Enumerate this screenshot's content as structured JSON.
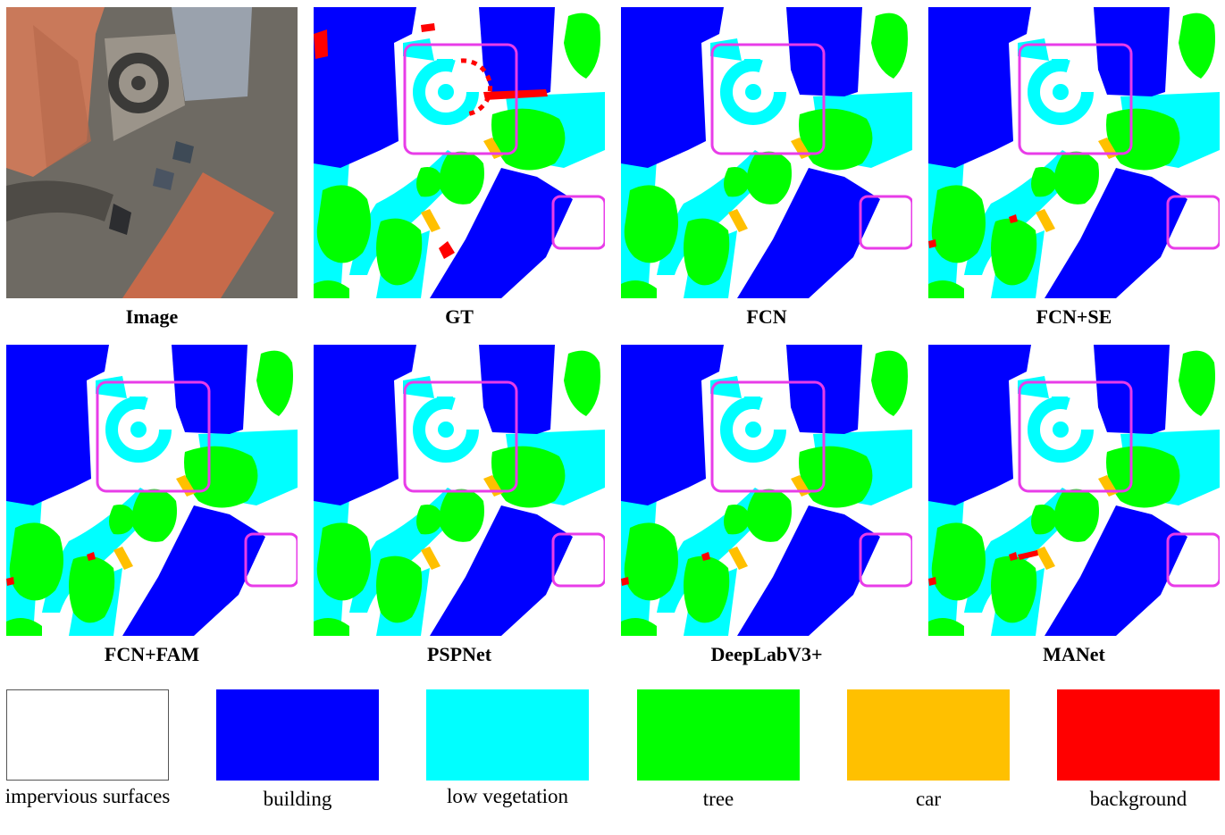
{
  "panels": [
    {
      "id": "image",
      "caption": "Image",
      "kind": "photo"
    },
    {
      "id": "gt",
      "caption": "GT",
      "kind": "gt"
    },
    {
      "id": "fcn",
      "caption": "FCN",
      "kind": "fcn"
    },
    {
      "id": "fcn-se",
      "caption": "FCN+SE",
      "kind": "fcnse"
    },
    {
      "id": "fcn-fam",
      "caption": "FCN+FAM",
      "kind": "fam"
    },
    {
      "id": "pspnet",
      "caption": "PSPNet",
      "kind": "psp"
    },
    {
      "id": "deeplabv3",
      "caption": "DeepLabV3+",
      "kind": "deeplab"
    },
    {
      "id": "manet",
      "caption": "MANet",
      "kind": "manet"
    }
  ],
  "legend": [
    {
      "label": "impervious surfaces",
      "color": "#ffffff"
    },
    {
      "label": "building",
      "color": "#0000ff"
    },
    {
      "label": "low vegetation",
      "color": "#00ffff"
    },
    {
      "label": "tree",
      "color": "#00ff00"
    },
    {
      "label": "car",
      "color": "#ffc000"
    },
    {
      "label": "background",
      "color": "#ff0000"
    }
  ],
  "colors": {
    "impervious": "#ffffff",
    "building": "#0000ff",
    "low_vegetation": "#00ffff",
    "tree": "#00ff00",
    "car": "#ffc000",
    "background": "#ff0000",
    "highlight": "#e83ce8"
  }
}
